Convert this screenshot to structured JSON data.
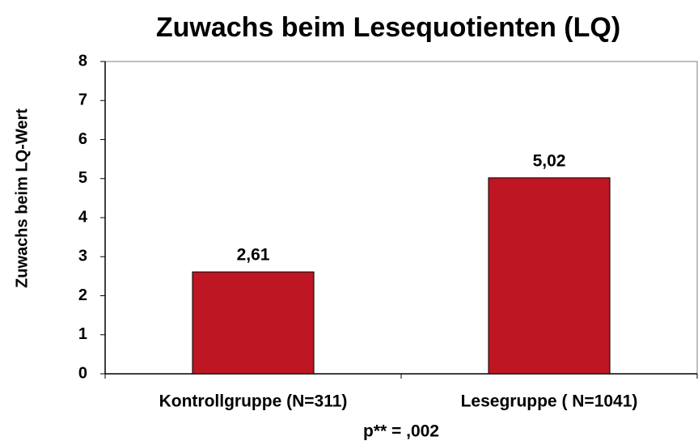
{
  "chart_data": {
    "type": "bar",
    "title": "Zuwachs beim Lesequotienten (LQ)",
    "y_label": "Zuwachs beim LQ-Wert",
    "categories": [
      "Kontrollgruppe (N=311)",
      "Lesegruppe ( N=1041)"
    ],
    "values": [
      2.61,
      5.02
    ],
    "value_labels": [
      "2,61",
      "5,02"
    ],
    "color": "#be1622",
    "annotation": "p** = ,002",
    "ylim": [
      0,
      8
    ],
    "yticks": [
      0,
      1,
      2,
      3,
      4,
      5,
      6,
      7,
      8
    ],
    "grid": false
  }
}
